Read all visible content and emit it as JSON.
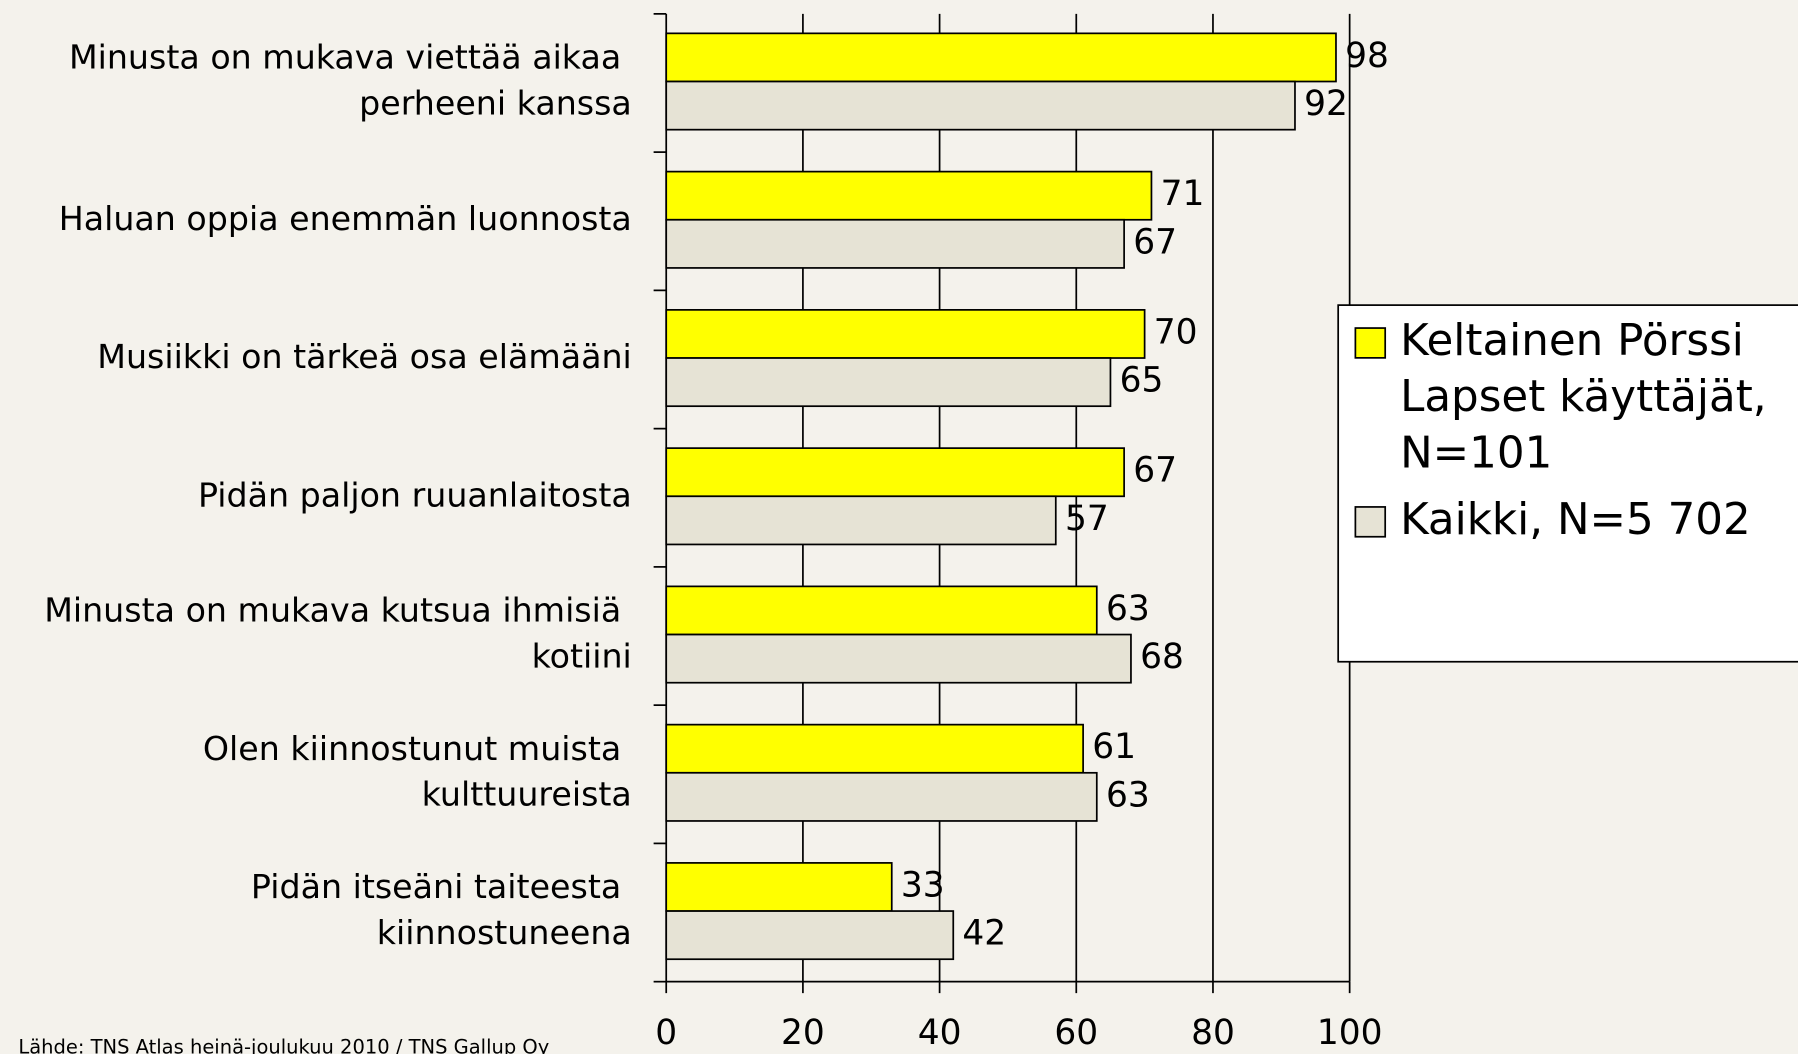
{
  "chart_data": {
    "type": "bar",
    "orientation": "horizontal",
    "categories": [
      "Minusta on mukava viettää aikaa perheeni kanssa",
      "Haluan oppia enemmän luonnosta",
      "Musiikki on tärkeä osa elämääni",
      "Pidän paljon ruuanlaitosta",
      "Minusta on mukava kutsua ihmisiä kotiini",
      "Olen kiinnostunut muista kulttuureista",
      "Pidän itseäni taiteesta kiinnostuneena"
    ],
    "series": [
      {
        "name": "Keltainen Pörssi Lapset käyttäjät, N=101",
        "color": "#ffff00",
        "values": [
          98,
          71,
          70,
          67,
          63,
          61,
          33
        ]
      },
      {
        "name": "Kaikki, N=5 702",
        "color": "#e6e3d5",
        "values": [
          92,
          67,
          65,
          57,
          68,
          63,
          42
        ]
      }
    ],
    "xlim": [
      0,
      100
    ],
    "xticks": [
      0,
      20,
      40,
      60,
      80,
      100
    ],
    "grid": true,
    "legend": "right",
    "source": "Lähde: TNS Atlas heinä-joulukuu 2010 / TNS Gallup Oy"
  }
}
